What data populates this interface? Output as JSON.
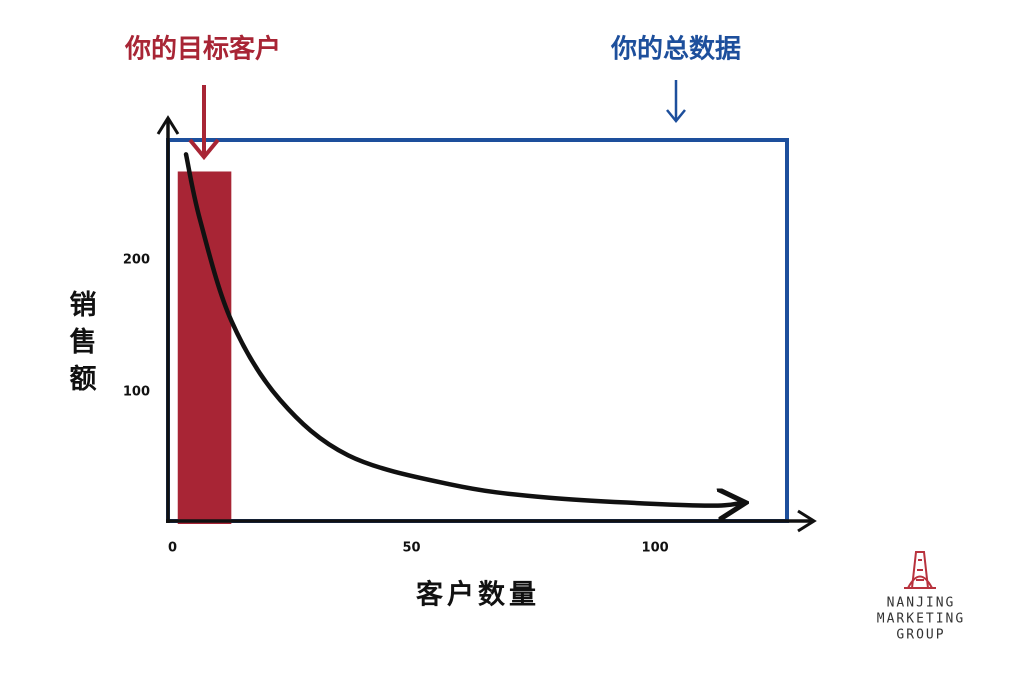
{
  "chart_data": {
    "type": "combo",
    "x_label": "客户数量",
    "y_label": "销售额",
    "xlim": [
      0,
      132
    ],
    "ylim": [
      0,
      306
    ],
    "xticks": [
      0,
      50,
      100
    ],
    "yticks": [
      100,
      200
    ],
    "grid": false,
    "annotations": [
      {
        "text": "你的目标客户",
        "color": "#a82535"
      },
      {
        "text": "你的总数据",
        "color": "#1d4f9c"
      }
    ],
    "series": [
      {
        "type": "bar",
        "color": "#a82535",
        "bins": [
          2,
          13
        ],
        "values": [
          267
        ]
      },
      {
        "type": "line",
        "color": "#111111",
        "x": [
          3.7,
          6.6,
          13,
          23,
          37,
          58,
          78,
          109,
          118
        ],
        "values": [
          280,
          230,
          154,
          94,
          52,
          30,
          20,
          14,
          16
        ]
      }
    ]
  },
  "logo": {
    "lines": [
      "NANJING",
      "MARKETING",
      "GROUP"
    ]
  }
}
